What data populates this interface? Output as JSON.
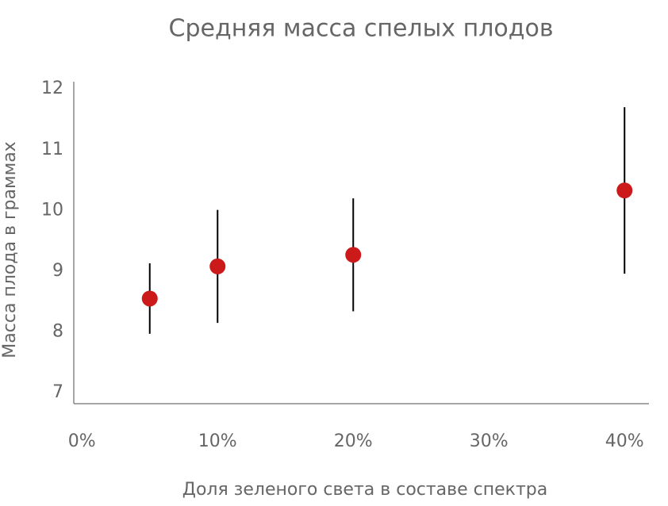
{
  "chart_data": {
    "type": "scatter",
    "title": "Средняя масса спелых плодов",
    "x_label": "Доля зеленого света в составе спектра",
    "y_label": "Масса плода в граммах",
    "series": [
      {
        "name": "Масса",
        "color": "#cc1a1a",
        "x": [
          5,
          10,
          20,
          40
        ],
        "values": [
          8.55,
          9.08,
          9.27,
          10.33
        ],
        "errors": [
          0.58,
          0.93,
          0.93,
          1.37
        ]
      }
    ],
    "xlim": [
      -0.6,
      41.8
    ],
    "xticks": [
      {
        "value": 0,
        "label": "0%"
      },
      {
        "value": 10,
        "label": "10%"
      },
      {
        "value": 20,
        "label": "20%"
      },
      {
        "value": 30,
        "label": "30%"
      },
      {
        "value": 40,
        "label": "40%"
      }
    ],
    "ylim": [
      6.82,
      12.12
    ],
    "yticks": [
      7,
      8,
      9,
      10,
      11,
      12
    ]
  }
}
